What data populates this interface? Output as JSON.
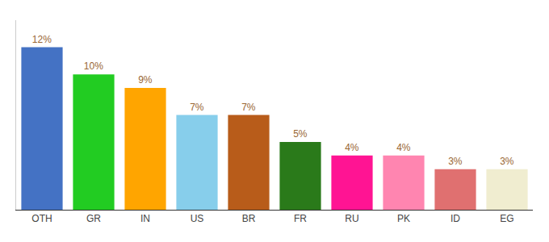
{
  "chart_data": {
    "type": "bar",
    "categories": [
      "OTH",
      "GR",
      "IN",
      "US",
      "BR",
      "FR",
      "RU",
      "PK",
      "ID",
      "EG"
    ],
    "values": [
      12,
      10,
      9,
      7,
      7,
      5,
      4,
      4,
      3,
      3
    ],
    "value_labels": [
      "12%",
      "10%",
      "9%",
      "7%",
      "7%",
      "5%",
      "4%",
      "4%",
      "3%",
      "3%"
    ],
    "data_labels": true,
    "colors": [
      "#4472C4",
      "#22CC22",
      "#FFA500",
      "#87CEEB",
      "#B85C1A",
      "#2A7A1A",
      "#FF1493",
      "#FF85B0",
      "#E07070",
      "#F0EDD0"
    ],
    "ylim": [
      0,
      14
    ],
    "yticks": [],
    "tick_labels": "x",
    "grid": false
  }
}
